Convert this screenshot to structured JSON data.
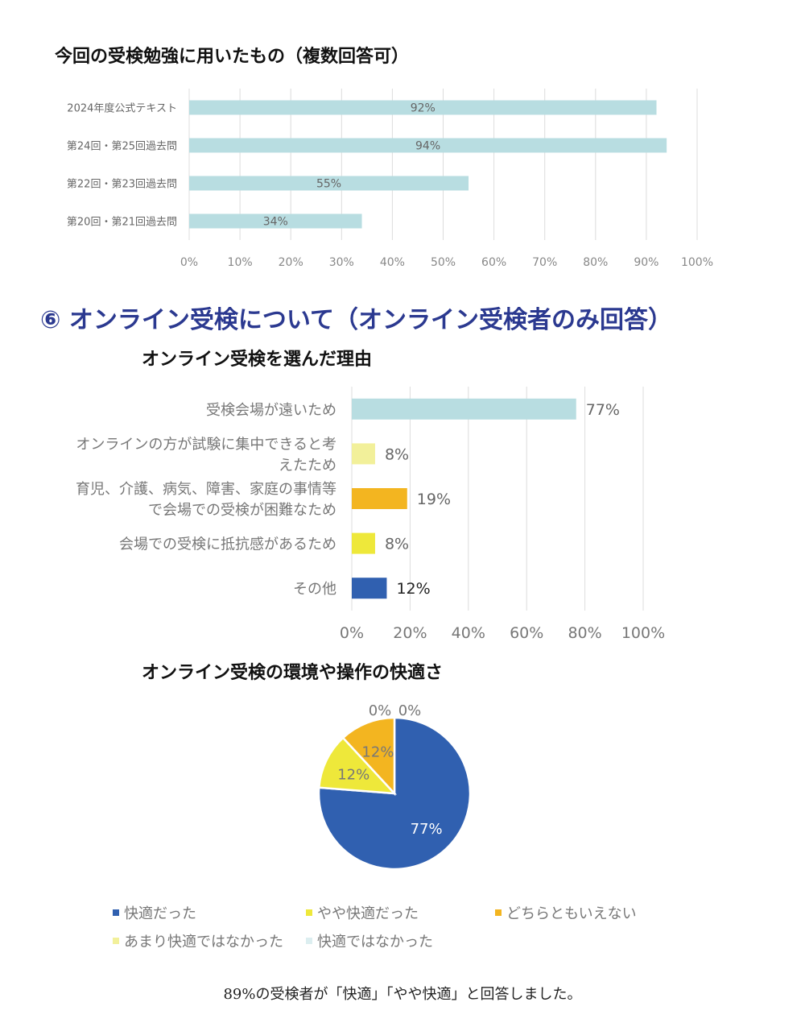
{
  "chart1": {
    "title": "今回の受検勉強に用いたもの（複数回答可）",
    "chart_data": {
      "type": "bar",
      "orientation": "horizontal",
      "categories": [
        "2024年度公式テキスト",
        "第24回・第25回過去問",
        "第22回・第23回過去問",
        "第20回・第21回過去問"
      ],
      "values": [
        92,
        94,
        55,
        34
      ],
      "data_labels": [
        "92%",
        "94%",
        "55%",
        "34%"
      ],
      "xlim": [
        0,
        100
      ],
      "xticks": [
        "0%",
        "10%",
        "20%",
        "30%",
        "40%",
        "50%",
        "60%",
        "70%",
        "80%",
        "90%",
        "100%"
      ],
      "bar_color": "#b8dde1",
      "grid": true
    }
  },
  "section": {
    "title": "⑥ オンライン受検について（オンライン受検者のみ回答）"
  },
  "chart2": {
    "title": "オンライン受検を選んだ理由",
    "chart_data": {
      "type": "bar",
      "orientation": "horizontal",
      "categories": [
        [
          "受検会場が遠いため"
        ],
        [
          "オンラインの方が試験に集中できると考",
          "えたため"
        ],
        [
          "育児、介護、病気、障害、家庭の事情等",
          "で会場での受検が困難なため"
        ],
        [
          "会場での受検に抵抗感があるため"
        ],
        [
          "その他"
        ]
      ],
      "values": [
        77,
        8,
        19,
        8,
        12
      ],
      "data_labels": [
        "77%",
        "8%",
        "19%",
        "8%",
        "12%"
      ],
      "colors": [
        "#b8dde1",
        "#f2f09a",
        "#f3b520",
        "#eee83a",
        "#3060b0"
      ],
      "xlim": [
        0,
        100
      ],
      "xticks": [
        "0%",
        "20%",
        "40%",
        "60%",
        "80%",
        "100%"
      ],
      "grid": true
    }
  },
  "chart3": {
    "title": "オンライン受検の環境や操作の快適さ",
    "chart_data": {
      "type": "pie",
      "labels": [
        "快適だった",
        "やや快適だった",
        "どちらともいえない",
        "あまり快適ではなかった",
        "快適ではなかった"
      ],
      "values": [
        77,
        12,
        12,
        0,
        0
      ],
      "data_labels": [
        "77%",
        "12%",
        "12%",
        "0%",
        "0%"
      ],
      "colors": [
        "#3060b0",
        "#eee83a",
        "#f3b520",
        "#f2f09a",
        "#dceef0"
      ],
      "legend_position": "bottom"
    }
  },
  "footer": {
    "text": "89%の受検者が「快適」「やや快適」と回答しました。"
  }
}
